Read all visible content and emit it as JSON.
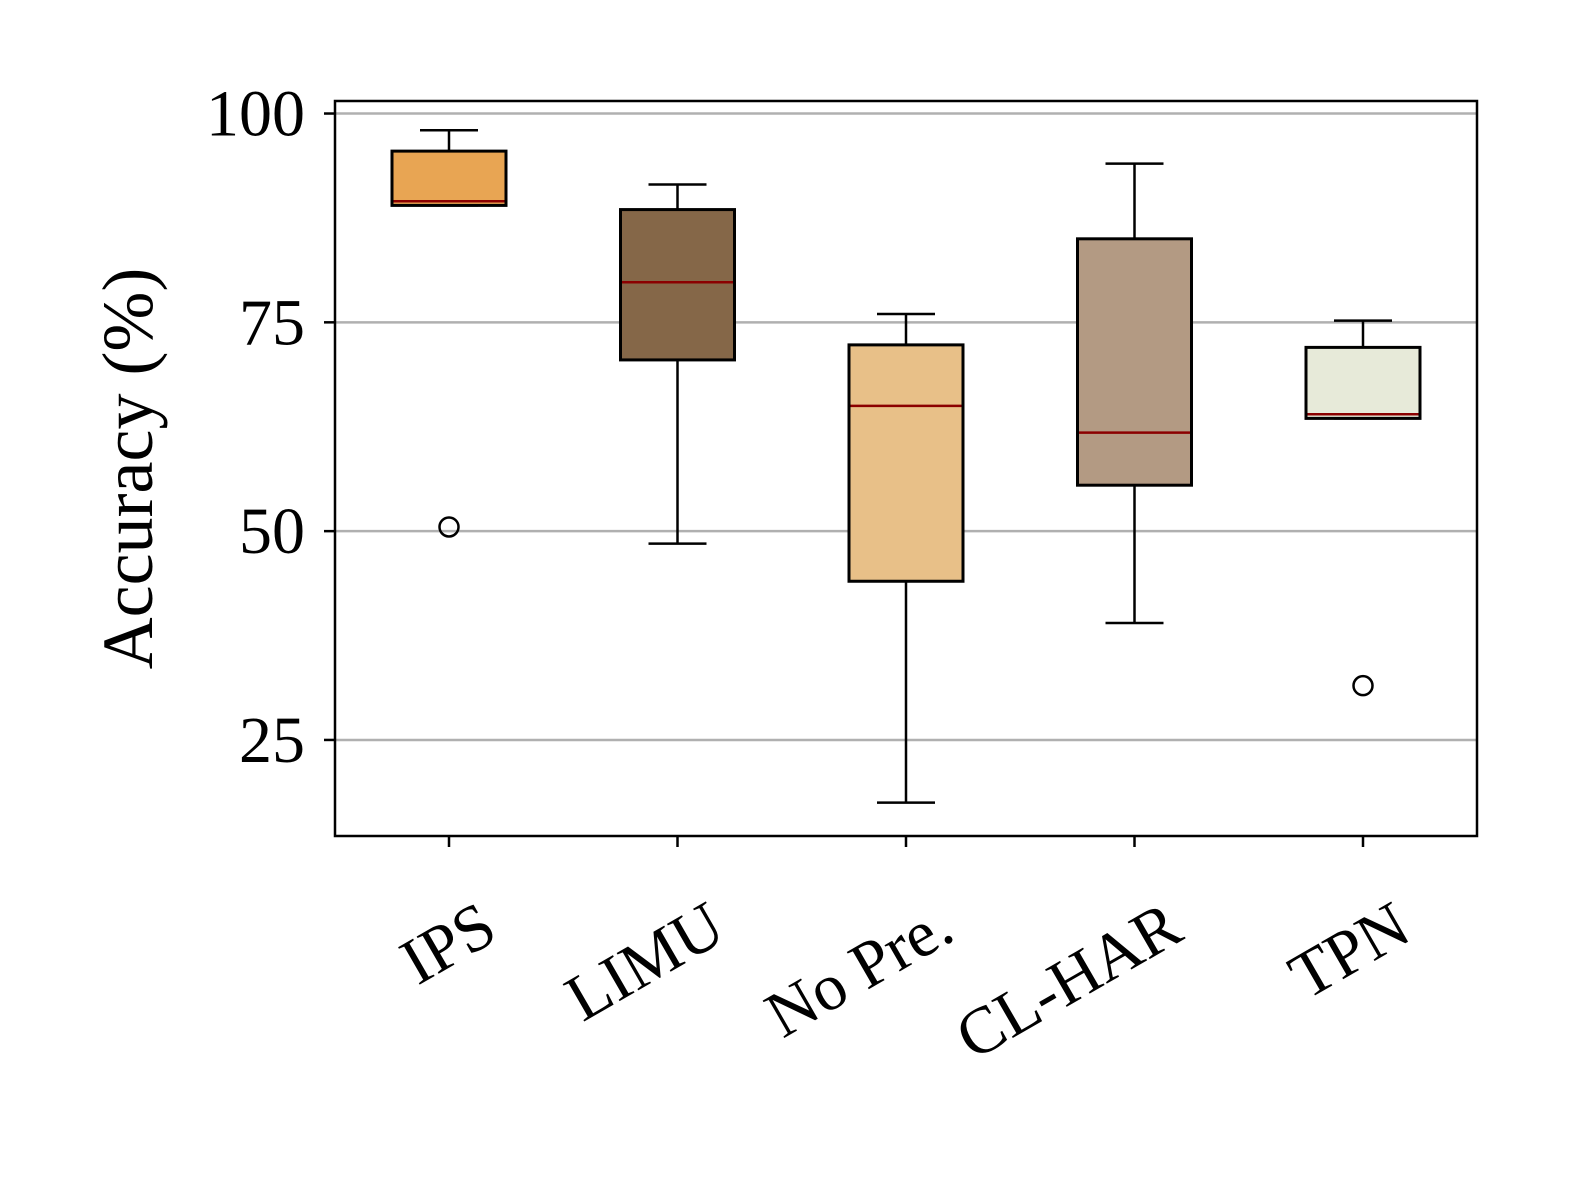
{
  "chart_data": {
    "type": "box",
    "title": "",
    "xlabel": "",
    "ylabel": "Accuracy (%)",
    "ylim": [
      13.5,
      101.5
    ],
    "yticks": [
      25,
      50,
      75,
      100
    ],
    "grid": "horizontal",
    "categories": [
      "IPS",
      "LIMU",
      "No Pre.",
      "CL-HAR",
      "TPN"
    ],
    "boxes": [
      {
        "category": "IPS",
        "whisker_low": 89.0,
        "q1": 89.0,
        "median": 89.5,
        "q3": 95.5,
        "whisker_high": 98.0,
        "outliers": [
          50.5
        ],
        "color": "#E8A553"
      },
      {
        "category": "LIMU",
        "whisker_low": 48.5,
        "q1": 70.5,
        "median": 79.8,
        "q3": 88.5,
        "whisker_high": 91.5,
        "outliers": [],
        "color": "#856748"
      },
      {
        "category": "No Pre.",
        "whisker_low": 17.5,
        "q1": 44.0,
        "median": 65.0,
        "q3": 72.3,
        "whisker_high": 76.0,
        "outliers": [],
        "color": "#E8C088"
      },
      {
        "category": "CL-HAR",
        "whisker_low": 39.0,
        "q1": 55.5,
        "median": 61.8,
        "q3": 85.0,
        "whisker_high": 94.0,
        "outliers": [],
        "color": "#B39A83"
      },
      {
        "category": "TPN",
        "whisker_low": 63.5,
        "q1": 63.5,
        "median": 64.0,
        "q3": 72.0,
        "whisker_high": 75.2,
        "outliers": [
          31.5
        ],
        "color": "#E7EAD9"
      }
    ],
    "median_color": "#8B0000",
    "grid_color": "#B0B0B0"
  }
}
